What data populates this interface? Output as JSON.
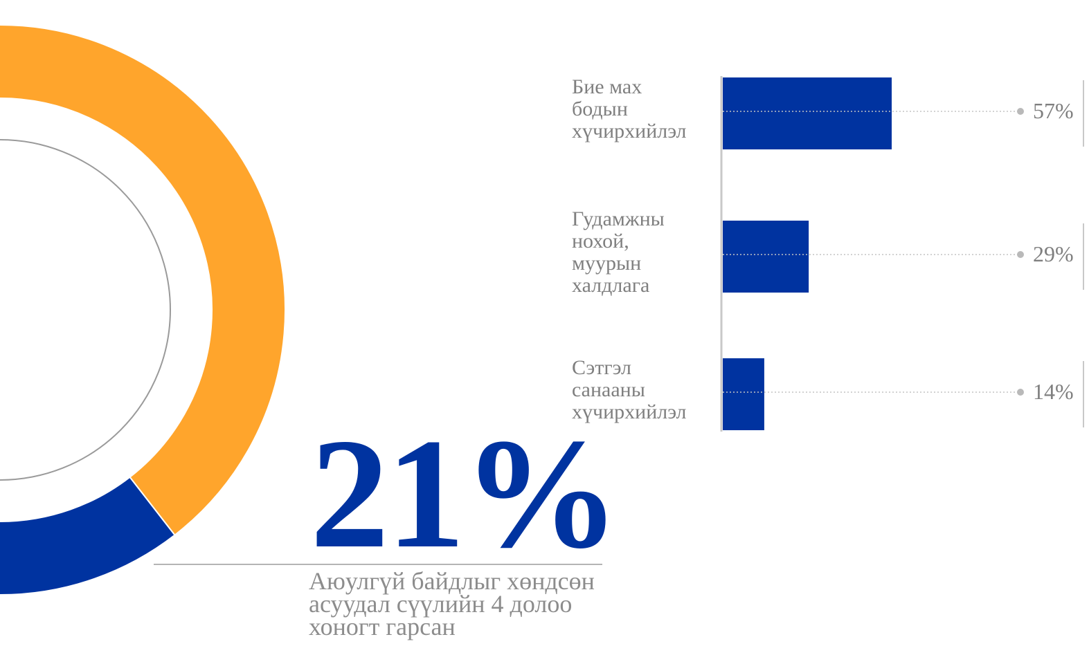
{
  "chart_data": [
    {
      "type": "pie",
      "slices": [
        {
          "value": 21,
          "color": "#0033a0"
        },
        {
          "value": 79,
          "color": "#ffa52c"
        }
      ],
      "center_value": "21%",
      "caption": "Аюулгүй байдлыг хөндсөн асуудал сүүлийн 4 долоо хоногт гарсан"
    },
    {
      "type": "bar",
      "orientation": "horizontal",
      "color": "#0033a0",
      "categories": [
        [
          "Бие мах",
          "бодын",
          "хүчирхийлэл"
        ],
        [
          "Гудамжны",
          "нохой,",
          "муурын",
          "халдлага"
        ],
        [
          "Сэтгэл",
          "санааны",
          "хүчирхийлэл"
        ]
      ],
      "values": [
        57,
        29,
        14
      ],
      "value_labels": [
        "57%",
        "29%",
        "14%"
      ],
      "xlim": [
        0,
        100
      ]
    }
  ]
}
